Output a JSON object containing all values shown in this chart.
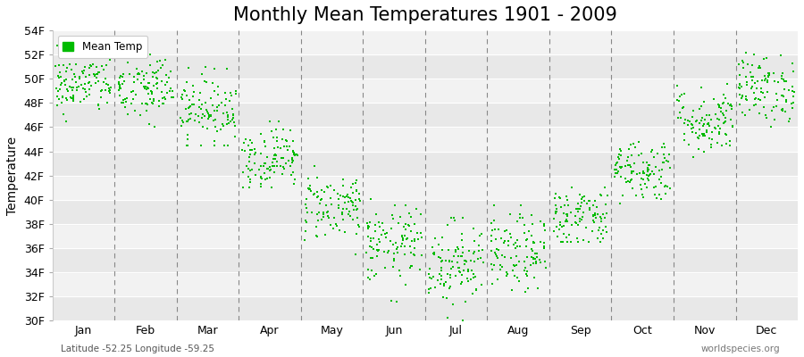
{
  "title": "Monthly Mean Temperatures 1901 - 2009",
  "ylabel": "Temperature",
  "xlabel_bottom_left": "Latitude -52.25 Longitude -59.25",
  "xlabel_bottom_right": "worldspecies.org",
  "legend_label": "Mean Temp",
  "marker_color": "#00bb00",
  "marker_size": 3,
  "ylim": [
    30,
    54
  ],
  "yticks": [
    30,
    32,
    34,
    36,
    38,
    40,
    42,
    44,
    46,
    48,
    50,
    52,
    54
  ],
  "ytick_labels": [
    "30F",
    "32F",
    "34F",
    "36F",
    "38F",
    "40F",
    "42F",
    "44F",
    "46F",
    "48F",
    "50F",
    "52F",
    "54F"
  ],
  "months": [
    "Jan",
    "Feb",
    "Mar",
    "Apr",
    "May",
    "Jun",
    "Jul",
    "Aug",
    "Sep",
    "Oct",
    "Nov",
    "Dec"
  ],
  "month_means": [
    49.5,
    49.2,
    47.5,
    43.5,
    39.5,
    36.2,
    34.8,
    35.5,
    38.5,
    42.5,
    46.5,
    49.2
  ],
  "month_stds": [
    1.2,
    1.5,
    1.4,
    1.3,
    1.4,
    1.6,
    1.8,
    1.6,
    1.4,
    1.3,
    1.4,
    1.4
  ],
  "month_mins": [
    46.5,
    45.5,
    44.5,
    41.0,
    35.5,
    31.5,
    30.0,
    31.5,
    36.5,
    39.5,
    43.5,
    46.0
  ],
  "month_maxs": [
    53.5,
    53.5,
    51.0,
    46.5,
    43.5,
    40.5,
    38.5,
    39.5,
    42.0,
    46.0,
    52.0,
    53.5
  ],
  "n_years": 109,
  "bg_stripe_even": "#ebebeb",
  "bg_stripe_odd": "#f5f5f5",
  "h_stripe_colors": [
    "#e8e8e8",
    "#f2f2f2"
  ],
  "vline_color": "#888888",
  "hline_color": "#ffffff",
  "title_fontsize": 15,
  "axis_fontsize": 10,
  "tick_fontsize": 9,
  "fig_width": 9.0,
  "fig_height": 4.0,
  "dpi": 100
}
